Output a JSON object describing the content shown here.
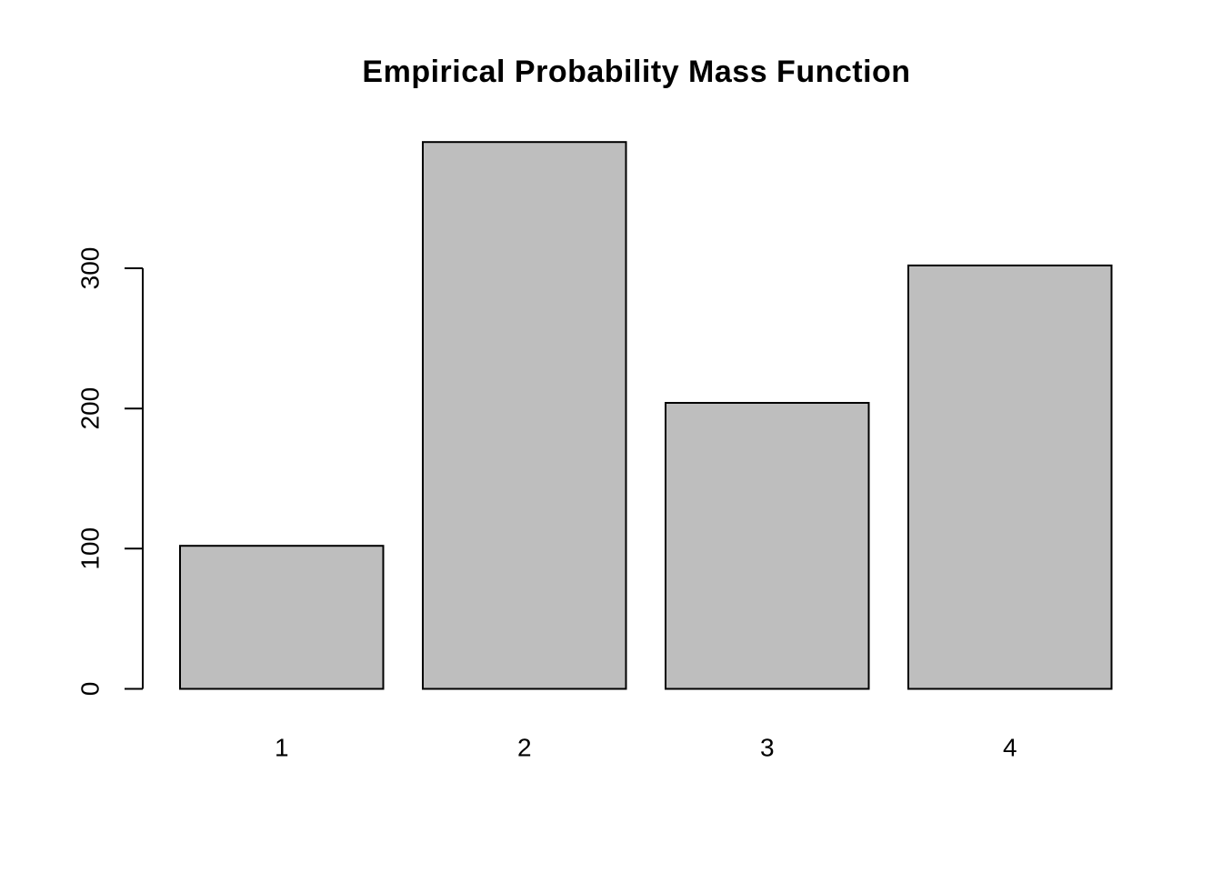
{
  "chart_data": {
    "type": "bar",
    "title": "Empirical Probability Mass Function",
    "categories": [
      "1",
      "2",
      "3",
      "4"
    ],
    "values": [
      102,
      390,
      204,
      302
    ],
    "xlabel": "",
    "ylabel": "",
    "yticks": [
      0,
      100,
      200,
      300
    ],
    "ylim": [
      0,
      390
    ],
    "grid": false,
    "legend": null,
    "bar_fill_color": "#bebebe",
    "bar_stroke_color": "#000000",
    "axis_color": "#000000",
    "title_color": "#000000",
    "background_color": "#ffffff"
  }
}
